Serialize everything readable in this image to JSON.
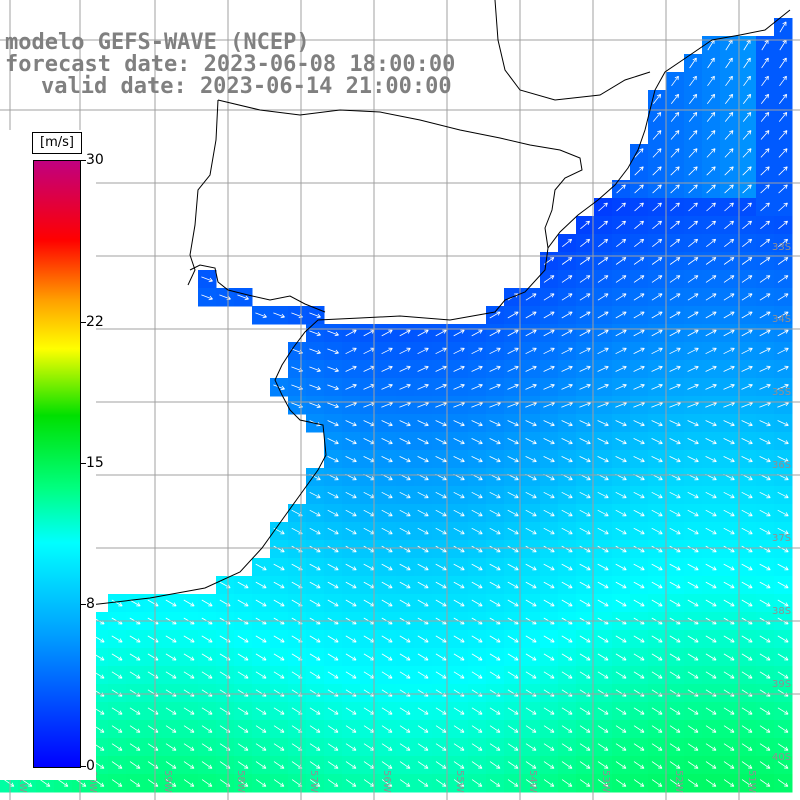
{
  "title": {
    "line1": "modelo GEFS-WAVE (NCEP)",
    "line2": "forecast date: 2023-06-08 18:00:00",
    "line3": "valid date: 2023-06-14 21:00:00"
  },
  "colorbar": {
    "unit": "[m/s]",
    "min": 0,
    "max": 30,
    "ticks": [
      {
        "value": 30,
        "label": "30"
      },
      {
        "value": 22,
        "label": "22"
      },
      {
        "value": 15,
        "label": "15"
      },
      {
        "value": 8,
        "label": "8"
      },
      {
        "value": 0,
        "label": "0"
      }
    ],
    "colors": [
      "#0000ff",
      "#00a0ff",
      "#00ffff",
      "#00ff80",
      "#00e000",
      "#ffff00",
      "#ffa000",
      "#ff0000",
      "#c00080"
    ]
  },
  "map": {
    "land_color": "#ffffff",
    "coast_color": "#000000",
    "grid_color": "#a0a0a0",
    "lon_labels": [
      "61W",
      "60W",
      "59W",
      "58W",
      "57W",
      "56W",
      "55W",
      "54W",
      "53W",
      "52W",
      "51W"
    ],
    "lat_labels": [
      "33S",
      "34S",
      "35S",
      "36S",
      "37S",
      "38S",
      "39S",
      "40S"
    ]
  }
}
